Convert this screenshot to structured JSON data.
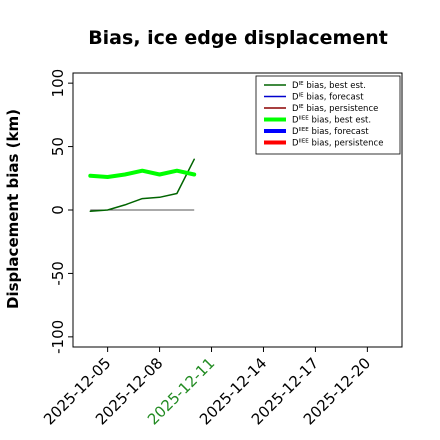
{
  "chart_data": {
    "type": "line",
    "title": "Bias, ice edge displacement",
    "ylabel": "Displacement bias (km)",
    "xlabel": "",
    "ylim": [
      -108,
      108
    ],
    "xlim": [
      "2025-12-03",
      "2025-12-22"
    ],
    "y_ticks": [
      100,
      50,
      0,
      -50,
      -100
    ],
    "x_ticks": [
      {
        "date": "2025-12-05",
        "label": "2025-12-05",
        "color": "#000000"
      },
      {
        "date": "2025-12-08",
        "label": "2025-12-08",
        "color": "#000000"
      },
      {
        "date": "2025-12-11",
        "label": "2025-12-11",
        "color": "#228b22"
      },
      {
        "date": "2025-12-14",
        "label": "2025-12-14",
        "color": "#000000"
      },
      {
        "date": "2025-12-17",
        "label": "2025-12-17",
        "color": "#000000"
      },
      {
        "date": "2025-12-20",
        "label": "2025-12-20",
        "color": "#000000"
      }
    ],
    "grid": false,
    "legend_position": "top-right",
    "series": [
      {
        "name": "D^IE bias, best est.",
        "color": "#006400",
        "width": 1.5,
        "x": [
          "2025-12-04",
          "2025-12-05",
          "2025-12-06",
          "2025-12-07",
          "2025-12-08",
          "2025-12-09",
          "2025-12-10"
        ],
        "y": [
          -1,
          0,
          4,
          9,
          10,
          13,
          40
        ]
      },
      {
        "name": "D^IE bias, forecast",
        "color": "#0000cd",
        "width": 1.5,
        "x": [],
        "y": []
      },
      {
        "name": "D^IE bias, persistence",
        "color": "#8b0000",
        "width": 1.5,
        "x": [],
        "y": []
      },
      {
        "name": "D^IIEE bias, best est.",
        "color": "#00ff00",
        "width": 4,
        "x": [
          "2025-12-04",
          "2025-12-05",
          "2025-12-06",
          "2025-12-07",
          "2025-12-08",
          "2025-12-09",
          "2025-12-10"
        ],
        "y": [
          27,
          26,
          28,
          31,
          28,
          31,
          28
        ]
      },
      {
        "name": "D^IIEE bias, forecast",
        "color": "#0000ff",
        "width": 4,
        "x": [],
        "y": []
      },
      {
        "name": "D^IIEE bias, persistence",
        "color": "#ff0000",
        "width": 4,
        "x": [],
        "y": []
      }
    ],
    "reference_line": {
      "y": 0,
      "x": [
        "2025-12-04",
        "2025-12-10"
      ],
      "color": "#555555"
    }
  },
  "legend": [
    {
      "sup": "IE",
      "text": " bias, best est."
    },
    {
      "sup": "IE",
      "text": " bias, forecast"
    },
    {
      "sup": "IE",
      "text": " bias, persistence"
    },
    {
      "sup": "IIEE",
      "text": " bias, best est."
    },
    {
      "sup": "IIEE",
      "text": " bias, forecast"
    },
    {
      "sup": "IIEE",
      "text": " bias, persistence"
    }
  ]
}
